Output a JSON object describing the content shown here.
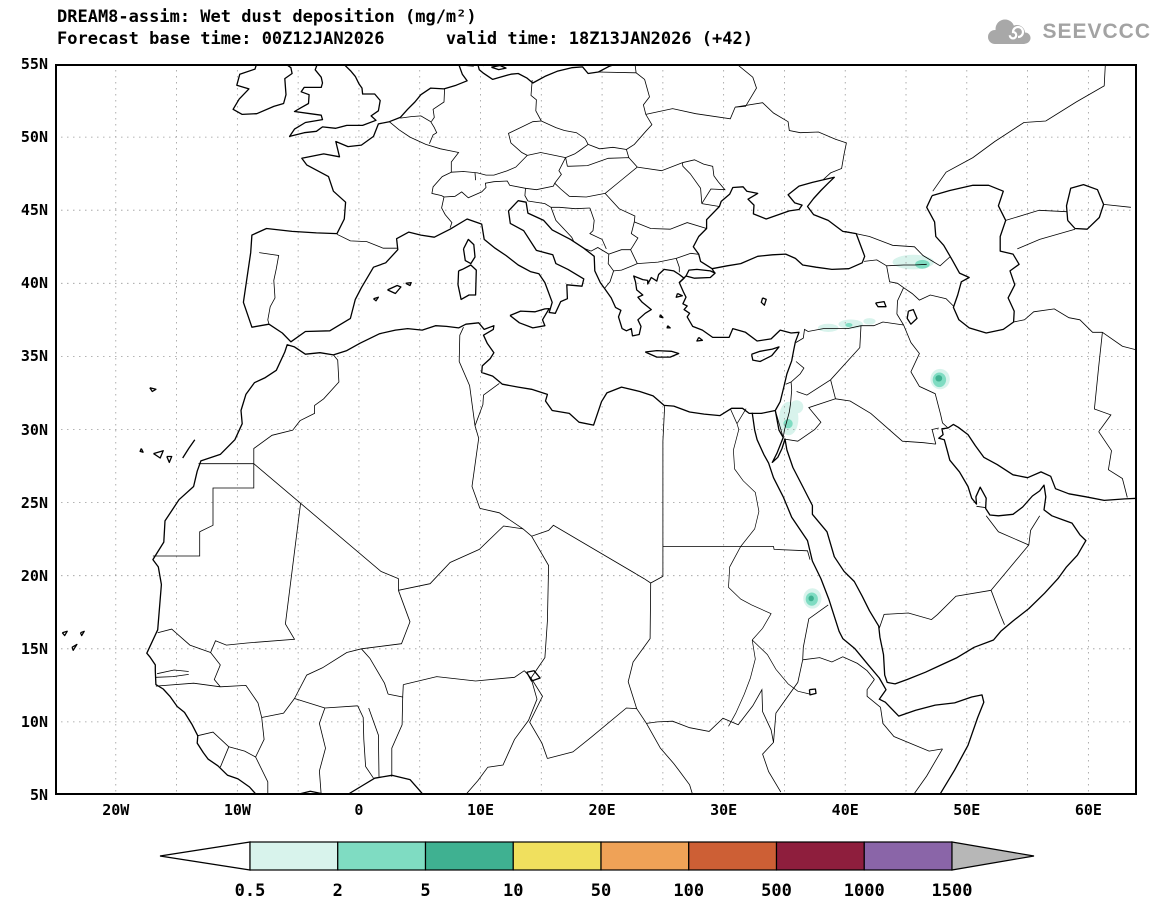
{
  "header": {
    "title_line1": "DREAM8-assim: Wet dust deposition (mg/m²)",
    "title_line2": "Forecast base time: 00Z12JAN2026      valid time: 18Z13JAN2026 (+42)"
  },
  "logo": {
    "text": "SEEVCCC",
    "icon": "cloud-icon",
    "color": "#a3a3a3"
  },
  "map": {
    "extent": {
      "lon_min": -25,
      "lon_max": 64,
      "lat_min": 5,
      "lat_max": 55
    },
    "grid_step_deg": 5,
    "grid_color": "#9a9a9a",
    "lat_ticks": [
      {
        "label": "55N",
        "value": 55
      },
      {
        "label": "50N",
        "value": 50
      },
      {
        "label": "45N",
        "value": 45
      },
      {
        "label": "40N",
        "value": 40
      },
      {
        "label": "35N",
        "value": 35
      },
      {
        "label": "30N",
        "value": 30
      },
      {
        "label": "25N",
        "value": 25
      },
      {
        "label": "20N",
        "value": 20
      },
      {
        "label": "15N",
        "value": 15
      },
      {
        "label": "10N",
        "value": 10
      },
      {
        "label": "5N",
        "value": 5
      }
    ],
    "lon_ticks": [
      {
        "label": "20W",
        "value": -20
      },
      {
        "label": "10W",
        "value": -10
      },
      {
        "label": "0",
        "value": 0
      },
      {
        "label": "10E",
        "value": 10
      },
      {
        "label": "20E",
        "value": 20
      },
      {
        "label": "30E",
        "value": 30
      },
      {
        "label": "40E",
        "value": 40
      },
      {
        "label": "50E",
        "value": 50
      },
      {
        "label": "60E",
        "value": 60
      }
    ]
  },
  "legend": {
    "values": [
      "0.5",
      "2",
      "5",
      "10",
      "50",
      "100",
      "500",
      "1000",
      "1500"
    ],
    "segment_colors": [
      "#d8f3ec",
      "#7fdcc2",
      "#3fb191",
      "#f0e05e",
      "#efa257",
      "#cd5f35",
      "#8e1e3d",
      "#8a65a8"
    ],
    "underflow_color": "#ffffff",
    "overflow_color": "#b7b7b7"
  },
  "deposition_spots": [
    {
      "region": "Kura valley Azerbaijan-Georgia",
      "layers": [
        {
          "lon": 45.6,
          "lat": 41.45,
          "rx": 1.7,
          "ry": 0.5,
          "level": 1
        },
        {
          "lon": 46.35,
          "lat": 41.3,
          "rx": 0.6,
          "ry": 0.3,
          "level": 2
        }
      ]
    },
    {
      "region": "SE Turkey - N Syria",
      "layers": [
        {
          "lon": 38.6,
          "lat": 36.95,
          "rx": 0.85,
          "ry": 0.28,
          "level": 1
        },
        {
          "lon": 40.45,
          "lat": 37.2,
          "rx": 1.0,
          "ry": 0.32,
          "level": 1
        },
        {
          "lon": 42.0,
          "lat": 37.4,
          "rx": 0.5,
          "ry": 0.22,
          "level": 1
        },
        {
          "lon": 40.3,
          "lat": 37.15,
          "rx": 0.3,
          "ry": 0.14,
          "level": 2
        }
      ]
    },
    {
      "region": "Iraq-Iran border",
      "layers": [
        {
          "lon": 47.8,
          "lat": 33.45,
          "rx": 0.8,
          "ry": 0.7,
          "level": 1
        },
        {
          "lon": 47.75,
          "lat": 33.4,
          "rx": 0.55,
          "ry": 0.5,
          "level": 2
        },
        {
          "lon": 47.7,
          "lat": 33.5,
          "rx": 0.28,
          "ry": 0.22,
          "level": 3
        }
      ]
    },
    {
      "region": "Israel-Jordan",
      "layers": [
        {
          "lon": 35.35,
          "lat": 30.75,
          "rx": 0.8,
          "ry": 1.15,
          "level": 1
        },
        {
          "lon": 36.0,
          "lat": 31.55,
          "rx": 0.55,
          "ry": 0.45,
          "level": 1
        },
        {
          "lon": 35.3,
          "lat": 30.4,
          "rx": 0.38,
          "ry": 0.32,
          "level": 2
        }
      ]
    },
    {
      "region": "Sudan-Eritrea",
      "layers": [
        {
          "lon": 37.3,
          "lat": 18.45,
          "rx": 0.75,
          "ry": 0.7,
          "level": 1
        },
        {
          "lon": 37.25,
          "lat": 18.4,
          "rx": 0.5,
          "ry": 0.45,
          "level": 2
        },
        {
          "lon": 37.2,
          "lat": 18.45,
          "rx": 0.22,
          "ry": 0.2,
          "level": 3
        }
      ]
    }
  ]
}
